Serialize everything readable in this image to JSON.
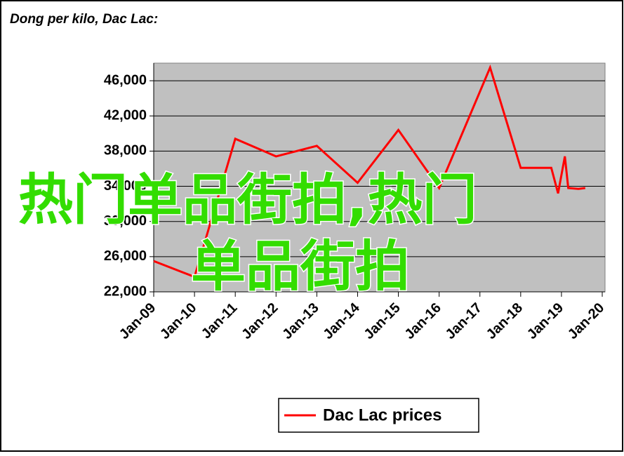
{
  "chart_data": {
    "type": "line",
    "title": "Dong per kilo, Dac Lac:",
    "x": [
      "2009-01",
      "2010-01",
      "2011-01",
      "2012-01",
      "2013-01",
      "2014-01",
      "2015-01",
      "2016-01",
      "2017-04",
      "2018-01",
      "2018-10",
      "2018-12",
      "2019-02",
      "2019-03",
      "2019-06",
      "2019-08"
    ],
    "series": [
      {
        "name": "Dac Lac prices",
        "color": "#ff0000",
        "values": [
          25500,
          23700,
          39400,
          37400,
          38600,
          34400,
          40400,
          33800,
          47500,
          36100,
          36100,
          33200,
          37400,
          33800,
          33700,
          33800
        ]
      }
    ],
    "xlim": [
      "2009-01",
      "2020-01"
    ],
    "xticks": [
      {
        "value": "2009-01",
        "label": "Jan-09"
      },
      {
        "value": "2010-01",
        "label": "Jan-10"
      },
      {
        "value": "2011-01",
        "label": "Jan-11"
      },
      {
        "value": "2012-01",
        "label": "Jan-12"
      },
      {
        "value": "2013-01",
        "label": "Jan-13"
      },
      {
        "value": "2014-01",
        "label": "Jan-14"
      },
      {
        "value": "2015-01",
        "label": "Jan-15"
      },
      {
        "value": "2016-01",
        "label": "Jan-16"
      },
      {
        "value": "2017-01",
        "label": "Jan-17"
      },
      {
        "value": "2018-01",
        "label": "Jan-18"
      },
      {
        "value": "2019-01",
        "label": "Jan-19"
      },
      {
        "value": "2020-01",
        "label": "Jan-20"
      }
    ],
    "ylim": [
      22000,
      48000
    ],
    "yticks": [
      {
        "value": 22000,
        "label": "22,000"
      },
      {
        "value": 26000,
        "label": "26,000"
      },
      {
        "value": 30000,
        "label": "30,000"
      },
      {
        "value": 34000,
        "label": "34,000"
      },
      {
        "value": 38000,
        "label": "38,000"
      },
      {
        "value": 42000,
        "label": "42,000"
      },
      {
        "value": 46000,
        "label": "46,000"
      }
    ],
    "grid": true,
    "plot_background": "#c0c0c0",
    "legend": "bottom",
    "overlay_text": [
      "热门单品街拍,热门",
      "单品街拍"
    ]
  }
}
